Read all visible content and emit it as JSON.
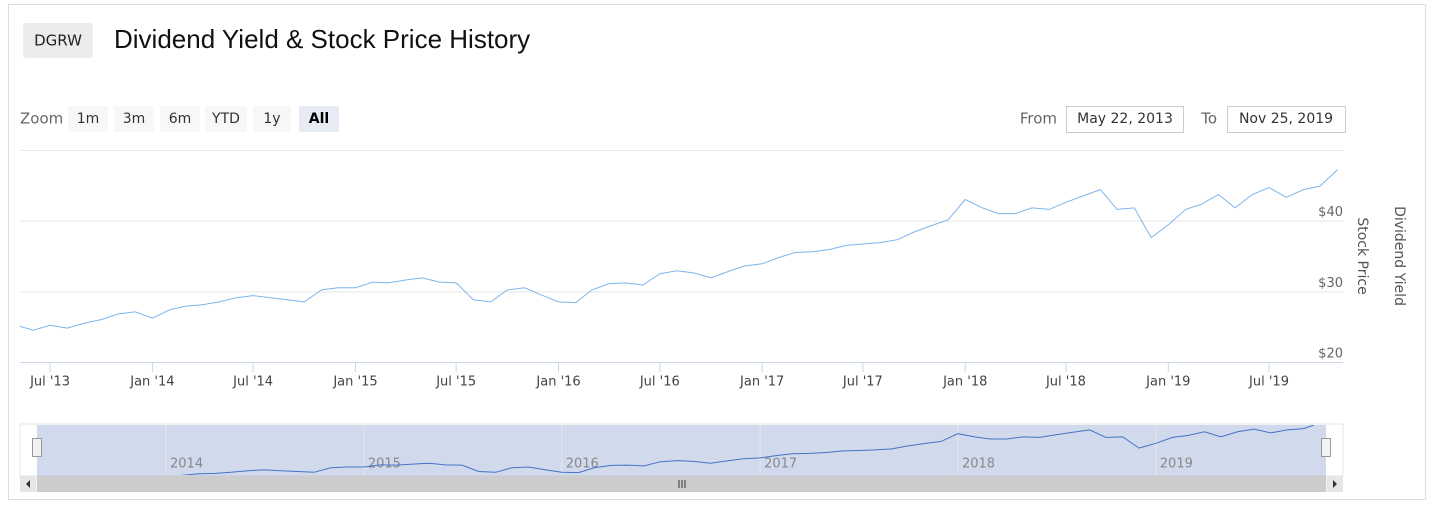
{
  "ticker": "DGRW",
  "zoom_label": "Zoom",
  "zoom_buttons": [
    "1m",
    "3m",
    "6m",
    "YTD",
    "1y",
    "All"
  ],
  "from_label": "From",
  "from": "May 22, 2013",
  "to_label": "To",
  "to": "Nov 25, 2019",
  "chart_data": {
    "type": "line",
    "title": "Dividend Yield & Stock Price History",
    "y_title": "Stock Price",
    "y2_title": "Dividend Yield",
    "color": "#7cb5ec",
    "x": [
      "2013-05",
      "2013-06",
      "2013-07",
      "2013-08",
      "2013-09",
      "2013-10",
      "2013-11",
      "2013-12",
      "2014-01",
      "2014-02",
      "2014-03",
      "2014-04",
      "2014-05",
      "2014-06",
      "2014-07",
      "2014-08",
      "2014-09",
      "2014-10",
      "2014-11",
      "2014-12",
      "2015-01",
      "2015-02",
      "2015-03",
      "2015-04",
      "2015-05",
      "2015-06",
      "2015-07",
      "2015-08",
      "2015-09",
      "2015-10",
      "2015-11",
      "2015-12",
      "2016-01",
      "2016-02",
      "2016-03",
      "2016-04",
      "2016-05",
      "2016-06",
      "2016-07",
      "2016-08",
      "2016-09",
      "2016-10",
      "2016-11",
      "2016-12",
      "2017-01",
      "2017-02",
      "2017-03",
      "2017-04",
      "2017-05",
      "2017-06",
      "2017-07",
      "2017-08",
      "2017-09",
      "2017-10",
      "2017-11",
      "2017-12",
      "2018-01",
      "2018-02",
      "2018-03",
      "2018-04",
      "2018-05",
      "2018-06",
      "2018-07",
      "2018-08",
      "2018-09",
      "2018-10",
      "2018-11",
      "2018-12",
      "2019-01",
      "2019-02",
      "2019-03",
      "2019-04",
      "2019-05",
      "2019-06",
      "2019-07",
      "2019-08",
      "2019-09",
      "2019-10",
      "2019-11"
    ],
    "values": [
      25.2,
      24.5,
      25.2,
      24.8,
      25.5,
      26.0,
      26.8,
      27.1,
      26.2,
      27.4,
      27.9,
      28.1,
      28.5,
      29.1,
      29.4,
      29.1,
      28.8,
      28.5,
      30.2,
      30.5,
      30.5,
      31.3,
      31.2,
      31.6,
      31.9,
      31.3,
      31.2,
      28.8,
      28.5,
      30.2,
      30.5,
      29.5,
      28.5,
      28.4,
      30.2,
      31.1,
      31.2,
      30.9,
      32.5,
      32.9,
      32.6,
      31.9,
      32.8,
      33.6,
      33.9,
      34.8,
      35.5,
      35.6,
      35.9,
      36.5,
      36.7,
      36.9,
      37.3,
      38.4,
      39.3,
      40.1,
      43.0,
      41.8,
      41.0,
      41.0,
      41.8,
      41.6,
      42.6,
      43.5,
      44.4,
      41.6,
      41.8,
      37.6,
      39.4,
      41.6,
      42.3,
      43.7,
      41.8,
      43.7,
      44.7,
      43.3,
      44.4,
      44.9,
      47.2
    ],
    "xlim": [
      "2013-05-22",
      "2019-11-25"
    ],
    "xticks": [
      {
        "value": "2013-07",
        "label": "Jul '13"
      },
      {
        "value": "2014-01",
        "label": "Jan '14"
      },
      {
        "value": "2014-07",
        "label": "Jul '14"
      },
      {
        "value": "2015-01",
        "label": "Jan '15"
      },
      {
        "value": "2015-07",
        "label": "Jul '15"
      },
      {
        "value": "2016-01",
        "label": "Jan '16"
      },
      {
        "value": "2016-07",
        "label": "Jul '16"
      },
      {
        "value": "2017-01",
        "label": "Jan '17"
      },
      {
        "value": "2017-07",
        "label": "Jul '17"
      },
      {
        "value": "2018-01",
        "label": "Jan '18"
      },
      {
        "value": "2018-07",
        "label": "Jul '18"
      },
      {
        "value": "2019-01",
        "label": "Jan '19"
      },
      {
        "value": "2019-07",
        "label": "Jul '19"
      }
    ],
    "ylim": [
      20,
      50
    ],
    "yticks": [
      {
        "value": 20,
        "label": "$20"
      },
      {
        "value": 30,
        "label": "$30"
      },
      {
        "value": 40,
        "label": "$40"
      }
    ],
    "grid": true,
    "navigator_xticks": [
      {
        "value": "2014-01",
        "label": "2014"
      },
      {
        "value": "2015-01",
        "label": "2015"
      },
      {
        "value": "2016-01",
        "label": "2016"
      },
      {
        "value": "2017-01",
        "label": "2017"
      },
      {
        "value": "2018-01",
        "label": "2018"
      },
      {
        "value": "2019-01",
        "label": "2019"
      }
    ]
  }
}
